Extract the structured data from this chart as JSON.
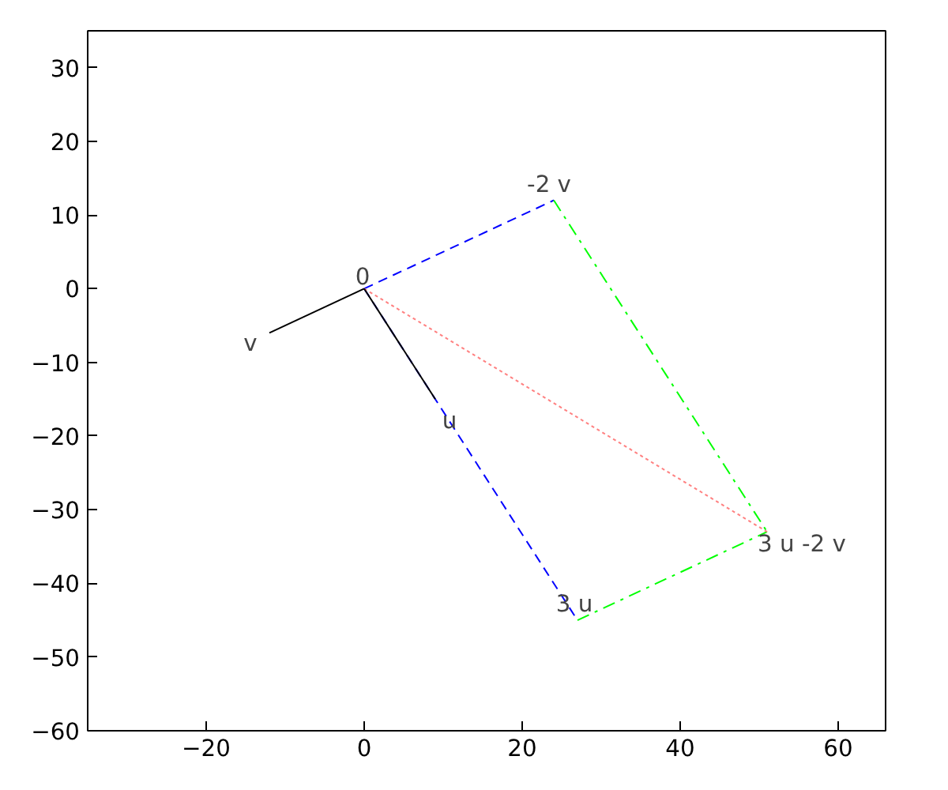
{
  "chart_data": {
    "type": "line",
    "xlim": [
      -35,
      66
    ],
    "ylim": [
      -60,
      35
    ],
    "xticks": [
      -20,
      0,
      20,
      40,
      60
    ],
    "yticks": [
      -60,
      -50,
      -40,
      -30,
      -20,
      -10,
      0,
      10,
      20,
      30
    ],
    "grid": false,
    "series": [
      {
        "color": "#0000ff",
        "line_style": "dashed",
        "x": [
          0,
          27
        ],
        "values": [
          0,
          -45
        ]
      },
      {
        "color": "#0000ff",
        "line_style": "dashed",
        "x": [
          0,
          24
        ],
        "values": [
          0,
          12
        ]
      },
      {
        "color": "#00ff00",
        "line_style": "dashdot",
        "x": [
          24,
          51
        ],
        "values": [
          12,
          -33
        ]
      },
      {
        "color": "#00ff00",
        "line_style": "dashdot",
        "x": [
          27,
          51
        ],
        "values": [
          -45,
          -33
        ]
      },
      {
        "color": "#ff8080",
        "line_style": "dotted",
        "x": [
          0,
          51
        ],
        "values": [
          0,
          -33
        ]
      },
      {
        "color": "#000000",
        "line_style": "solid",
        "x": [
          0,
          9
        ],
        "values": [
          0,
          -15
        ]
      },
      {
        "color": "#000000",
        "line_style": "solid",
        "x": [
          0,
          -12
        ],
        "values": [
          0,
          -6
        ]
      }
    ],
    "annotations": [
      {
        "text": "0",
        "x": 0,
        "y": 0
      },
      {
        "text": "v",
        "x": -12,
        "y": -6
      },
      {
        "text": "u",
        "x": 9,
        "y": -15
      },
      {
        "text": "-2 v",
        "x": 24,
        "y": 12
      },
      {
        "text": "3 u",
        "x": 27,
        "y": -45
      },
      {
        "text": "3 u -2 v",
        "x": 51,
        "y": -33
      }
    ]
  }
}
